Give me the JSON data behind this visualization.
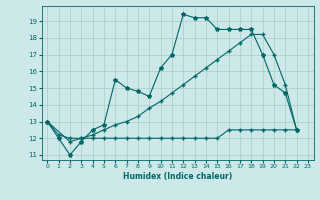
{
  "title": "",
  "xlabel": "Humidex (Indice chaleur)",
  "ylabel": "",
  "bg_color": "#cce8e8",
  "grid_color": "#aacccc",
  "line_color": "#006666",
  "xlim": [
    -0.5,
    23.5
  ],
  "ylim": [
    10.7,
    19.9
  ],
  "yticks": [
    11,
    12,
    13,
    14,
    15,
    16,
    17,
    18,
    19
  ],
  "xticks": [
    0,
    1,
    2,
    3,
    4,
    5,
    6,
    7,
    8,
    9,
    10,
    11,
    12,
    13,
    14,
    15,
    16,
    17,
    18,
    19,
    20,
    21,
    22,
    23
  ],
  "line1_x": [
    0,
    1,
    2,
    3,
    4,
    5,
    6,
    7,
    8,
    9,
    10,
    11,
    12,
    13,
    14,
    15,
    16,
    17,
    18,
    19,
    20,
    21,
    22
  ],
  "line1_y": [
    13.0,
    12.0,
    11.0,
    11.8,
    12.5,
    12.8,
    15.5,
    15.0,
    14.8,
    14.5,
    16.2,
    17.0,
    19.4,
    19.2,
    19.2,
    18.5,
    18.5,
    18.5,
    18.5,
    17.0,
    15.2,
    14.7,
    12.5
  ],
  "line2_x": [
    0,
    1,
    2,
    3,
    4,
    5,
    6,
    7,
    8,
    9,
    10,
    11,
    12,
    13,
    14,
    15,
    16,
    17,
    18,
    19,
    20,
    21,
    22
  ],
  "line2_y": [
    13.0,
    12.2,
    12.0,
    12.0,
    12.0,
    12.0,
    12.0,
    12.0,
    12.0,
    12.0,
    12.0,
    12.0,
    12.0,
    12.0,
    12.0,
    12.0,
    12.5,
    12.5,
    12.5,
    12.5,
    12.5,
    12.5,
    12.5
  ],
  "line3_x": [
    0,
    2,
    3,
    4,
    5,
    6,
    7,
    8,
    9,
    10,
    11,
    12,
    13,
    14,
    15,
    16,
    17,
    18,
    19,
    20,
    21,
    22
  ],
  "line3_y": [
    13.0,
    11.8,
    12.0,
    12.2,
    12.5,
    12.8,
    13.0,
    13.3,
    13.8,
    14.2,
    14.7,
    15.2,
    15.7,
    16.2,
    16.7,
    17.2,
    17.7,
    18.2,
    18.2,
    17.0,
    15.2,
    12.5
  ]
}
